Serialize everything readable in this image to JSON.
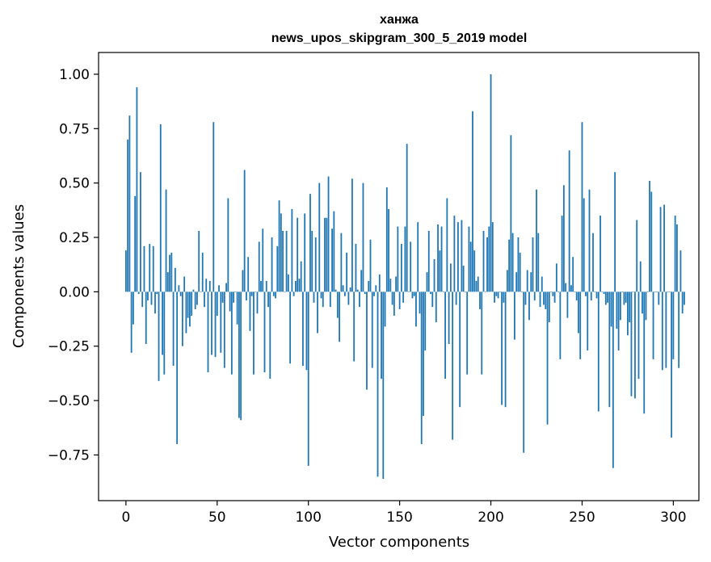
{
  "chart_data": {
    "type": "bar",
    "title": "ханжа",
    "subtitle": "news_upos_skipgram_300_5_2019 model",
    "xlabel": "Vector components",
    "ylabel": "Components values",
    "xlim": [
      -15,
      314
    ],
    "ylim": [
      -0.96,
      1.1
    ],
    "xticks": [
      0,
      50,
      100,
      150,
      200,
      250,
      300
    ],
    "yticks": [
      -0.75,
      -0.5,
      -0.25,
      0.0,
      0.25,
      0.5,
      0.75,
      1.0
    ],
    "ytick_labels": [
      "−0.75",
      "−0.50",
      "−0.25",
      "0.00",
      "0.25",
      "0.50",
      "0.75",
      "1.00"
    ],
    "grid": false,
    "bar_color": "#1f77b4",
    "values": [
      0.19,
      0.7,
      0.81,
      -0.28,
      -0.15,
      0.44,
      0.94,
      -0.01,
      0.55,
      -0.07,
      0.21,
      -0.24,
      -0.04,
      0.22,
      -0.06,
      0.21,
      -0.1,
      -0.01,
      -0.41,
      0.77,
      -0.29,
      -0.38,
      0.47,
      0.09,
      0.17,
      0.18,
      -0.34,
      0.11,
      -0.7,
      0.03,
      -0.02,
      -0.25,
      0.07,
      -0.19,
      -0.12,
      -0.16,
      -0.11,
      0.01,
      -0.08,
      -0.06,
      0.28,
      0.0,
      0.18,
      -0.07,
      0.06,
      -0.37,
      0.05,
      -0.29,
      0.78,
      -0.3,
      -0.11,
      0.03,
      -0.28,
      -0.05,
      -0.35,
      0.04,
      0.43,
      -0.09,
      -0.38,
      -0.05,
      0.0,
      -0.15,
      -0.58,
      -0.59,
      0.1,
      0.56,
      -0.04,
      0.16,
      -0.18,
      -0.02,
      -0.38,
      0.0,
      -0.1,
      0.23,
      0.05,
      0.29,
      -0.37,
      0.05,
      -0.07,
      -0.4,
      0.25,
      -0.02,
      -0.03,
      0.21,
      0.42,
      0.36,
      0.28,
      0.0,
      0.28,
      0.08,
      -0.33,
      0.38,
      -0.02,
      0.05,
      0.34,
      0.06,
      0.14,
      -0.34,
      0.36,
      -0.36,
      -0.8,
      0.45,
      0.28,
      -0.05,
      0.25,
      -0.19,
      0.5,
      -0.03,
      -0.07,
      0.34,
      0.34,
      0.53,
      -0.07,
      0.29,
      0.37,
      0.01,
      -0.12,
      -0.23,
      0.27,
      0.03,
      -0.02,
      0.18,
      -0.06,
      0.02,
      0.52,
      -0.32,
      0.22,
      0.01,
      -0.07,
      0.1,
      0.5,
      -0.01,
      -0.45,
      0.05,
      0.24,
      -0.35,
      -0.02,
      0.03,
      -0.85,
      0.08,
      -0.4,
      -0.86,
      -0.16,
      0.48,
      0.38,
      0.06,
      -0.06,
      -0.11,
      0.07,
      0.3,
      -0.08,
      0.22,
      -0.05,
      0.3,
      0.68,
      0.0,
      0.23,
      -0.03,
      -0.02,
      -0.16,
      0.32,
      -0.1,
      -0.7,
      -0.57,
      -0.27,
      0.09,
      0.28,
      -0.01,
      -0.07,
      0.15,
      -0.14,
      0.31,
      0.19,
      0.3,
      0.0,
      -0.4,
      0.43,
      -0.24,
      0.13,
      -0.68,
      0.35,
      -0.06,
      0.32,
      -0.53,
      0.33,
      0.12,
      0.0,
      -0.38,
      0.3,
      0.23,
      0.83,
      0.19,
      0.05,
      0.07,
      -0.08,
      -0.38,
      0.28,
      0.0,
      0.25,
      0.3,
      1.0,
      0.32,
      -0.05,
      -0.02,
      -0.03,
      0.0,
      -0.52,
      -0.05,
      -0.53,
      0.1,
      0.24,
      0.72,
      0.27,
      -0.22,
      0.09,
      0.25,
      0.18,
      0.0,
      -0.74,
      -0.06,
      0.1,
      -0.13,
      0.09,
      0.25,
      -0.04,
      0.47,
      0.27,
      -0.07,
      0.07,
      -0.06,
      -0.08,
      -0.61,
      -0.14,
      0.0,
      -0.02,
      -0.05,
      0.13,
      0.0,
      -0.31,
      0.35,
      0.49,
      0.04,
      -0.12,
      0.65,
      0.03,
      0.16,
      0.0,
      -0.04,
      -0.19,
      -0.31,
      0.78,
      0.43,
      -0.02,
      -0.27,
      0.47,
      -0.04,
      0.27,
      0.0,
      -0.03,
      -0.55,
      0.35,
      0.0,
      -0.01,
      -0.06,
      -0.05,
      -0.53,
      -0.16,
      -0.81,
      0.55,
      -0.17,
      -0.27,
      -0.13,
      0.0,
      -0.06,
      -0.05,
      -0.2,
      -0.14,
      -0.48,
      0.0,
      -0.49,
      0.33,
      -0.4,
      0.14,
      -0.1,
      -0.56,
      -0.13,
      0.0,
      0.51,
      0.46,
      -0.31,
      0.0,
      0.0,
      -0.06,
      0.39,
      -0.36,
      0.4,
      -0.35,
      0.0,
      0.0,
      -0.67,
      -0.31,
      0.35,
      0.31,
      -0.35,
      0.19,
      -0.1,
      -0.06
    ]
  }
}
